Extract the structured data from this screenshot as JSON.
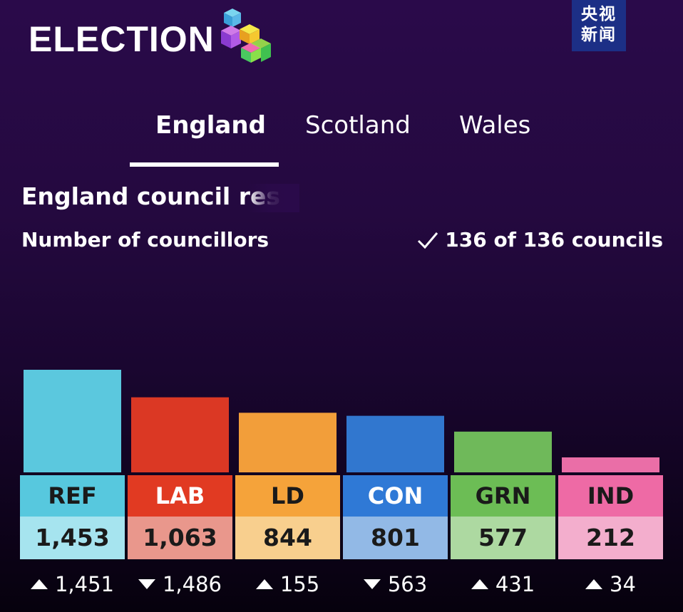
{
  "header": {
    "logo_text": "ELECTION",
    "watermark_line1": "央视",
    "watermark_line2": "新闻"
  },
  "tabs": [
    {
      "label": "England",
      "active": true
    },
    {
      "label": "Scotland",
      "active": false
    },
    {
      "label": "Wales",
      "active": false
    }
  ],
  "chart_data": {
    "type": "bar",
    "title": "England council res",
    "subtitle": "Number of councillors",
    "status": "136 of 136 councils",
    "categories": [
      "REF",
      "LAB",
      "LD",
      "CON",
      "GRN",
      "IND"
    ],
    "values": [
      1453,
      1063,
      844,
      801,
      577,
      212
    ],
    "value_labels": [
      "1,453",
      "1,063",
      "844",
      "801",
      "577",
      "212"
    ],
    "changes": [
      {
        "direction": "up",
        "label": "1,451"
      },
      {
        "direction": "down",
        "label": "1,486"
      },
      {
        "direction": "up",
        "label": "155"
      },
      {
        "direction": "down",
        "label": "563"
      },
      {
        "direction": "up",
        "label": "431"
      },
      {
        "direction": "up",
        "label": "34"
      }
    ],
    "colors": {
      "bar": [
        "#5bc8de",
        "#db3824",
        "#f29e3a",
        "#3177cf",
        "#6fb95a",
        "#ea6ea7"
      ],
      "label_bg": [
        "#57c8de",
        "#e13a22",
        "#f5a33a",
        "#2f79d6",
        "#6cbd55",
        "#ee6aa5"
      ],
      "label_text": [
        "#1a1a1a",
        "#ffffff",
        "#1a1a1a",
        "#ffffff",
        "#1a1a1a",
        "#1a1a1a"
      ],
      "value_bg": [
        "#a6e4ef",
        "#e9978c",
        "#f8cf8e",
        "#92b9e6",
        "#add9a1",
        "#f3aecd"
      ]
    }
  }
}
